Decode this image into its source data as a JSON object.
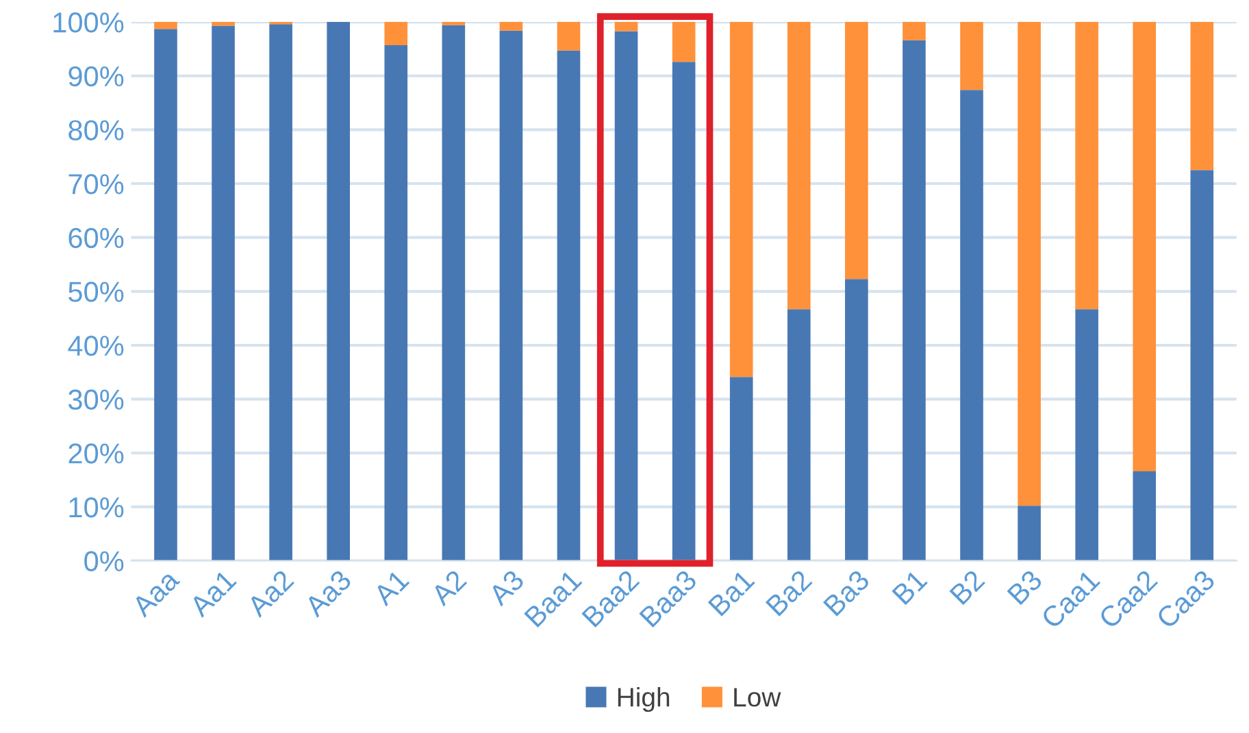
{
  "chart_data": {
    "type": "bar",
    "stacked": true,
    "categories": [
      "Aaa",
      "Aa1",
      "Aa2",
      "Aa3",
      "A1",
      "A2",
      "A3",
      "Baa1",
      "Baa2",
      "Baa3",
      "Ba1",
      "Ba2",
      "Ba3",
      "B1",
      "B2",
      "B3",
      "Caa1",
      "Caa2",
      "Caa3"
    ],
    "series": [
      {
        "name": "High",
        "color": "#4878b3",
        "values": [
          98.7,
          99.3,
          99.6,
          100,
          95.7,
          99.4,
          98.4,
          94.7,
          98.3,
          92.6,
          34.1,
          46.7,
          52.3,
          96.6,
          87.4,
          10.2,
          46.7,
          16.6,
          72.5
        ]
      },
      {
        "name": "Low",
        "color": "#ff913a",
        "values": [
          1.3,
          0.7,
          0.4,
          0,
          4.3,
          0.6,
          1.6,
          5.3,
          1.7,
          7.4,
          65.9,
          53.3,
          47.7,
          3.4,
          12.6,
          89.8,
          53.3,
          83.4,
          27.5
        ]
      }
    ],
    "ylim": [
      0,
      100
    ],
    "yticks": [
      {
        "value": 0,
        "label": "0%"
      },
      {
        "value": 10,
        "label": "10%"
      },
      {
        "value": 20,
        "label": "20%"
      },
      {
        "value": 30,
        "label": "30%"
      },
      {
        "value": 40,
        "label": "40%"
      },
      {
        "value": 50,
        "label": "50%"
      },
      {
        "value": 60,
        "label": "60%"
      },
      {
        "value": 70,
        "label": "70%"
      },
      {
        "value": 80,
        "label": "80%"
      },
      {
        "value": 90,
        "label": "90%"
      },
      {
        "value": 100,
        "label": "100%"
      }
    ],
    "grid": "y",
    "legend": "bottom"
  }
}
